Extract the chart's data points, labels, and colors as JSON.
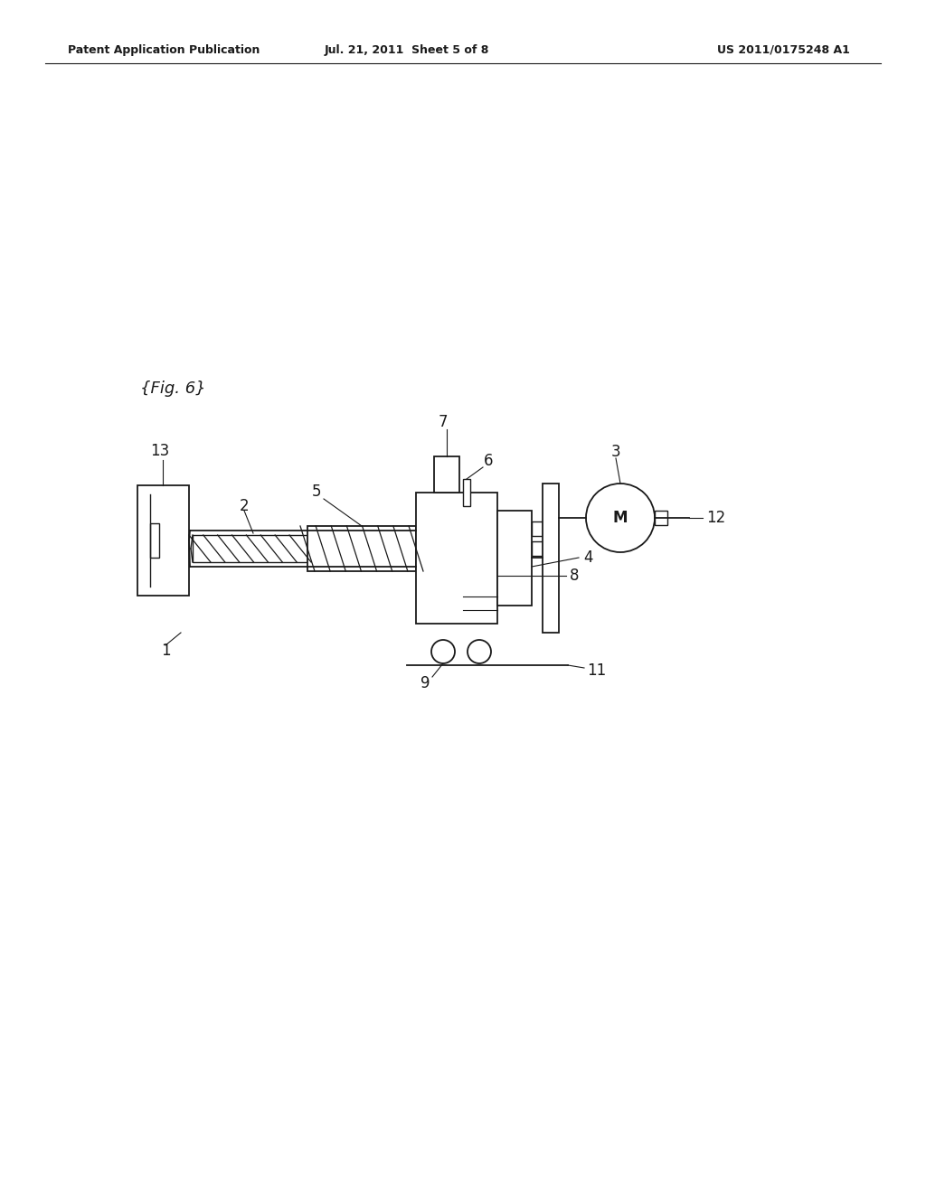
{
  "bg_color": "#ffffff",
  "line_color": "#1a1a1a",
  "header_left": "Patent Application Publication",
  "header_mid": "Jul. 21, 2011  Sheet 5 of 8",
  "header_right": "US 2011/0175248 A1",
  "fig_label": "{Fig. 6}"
}
